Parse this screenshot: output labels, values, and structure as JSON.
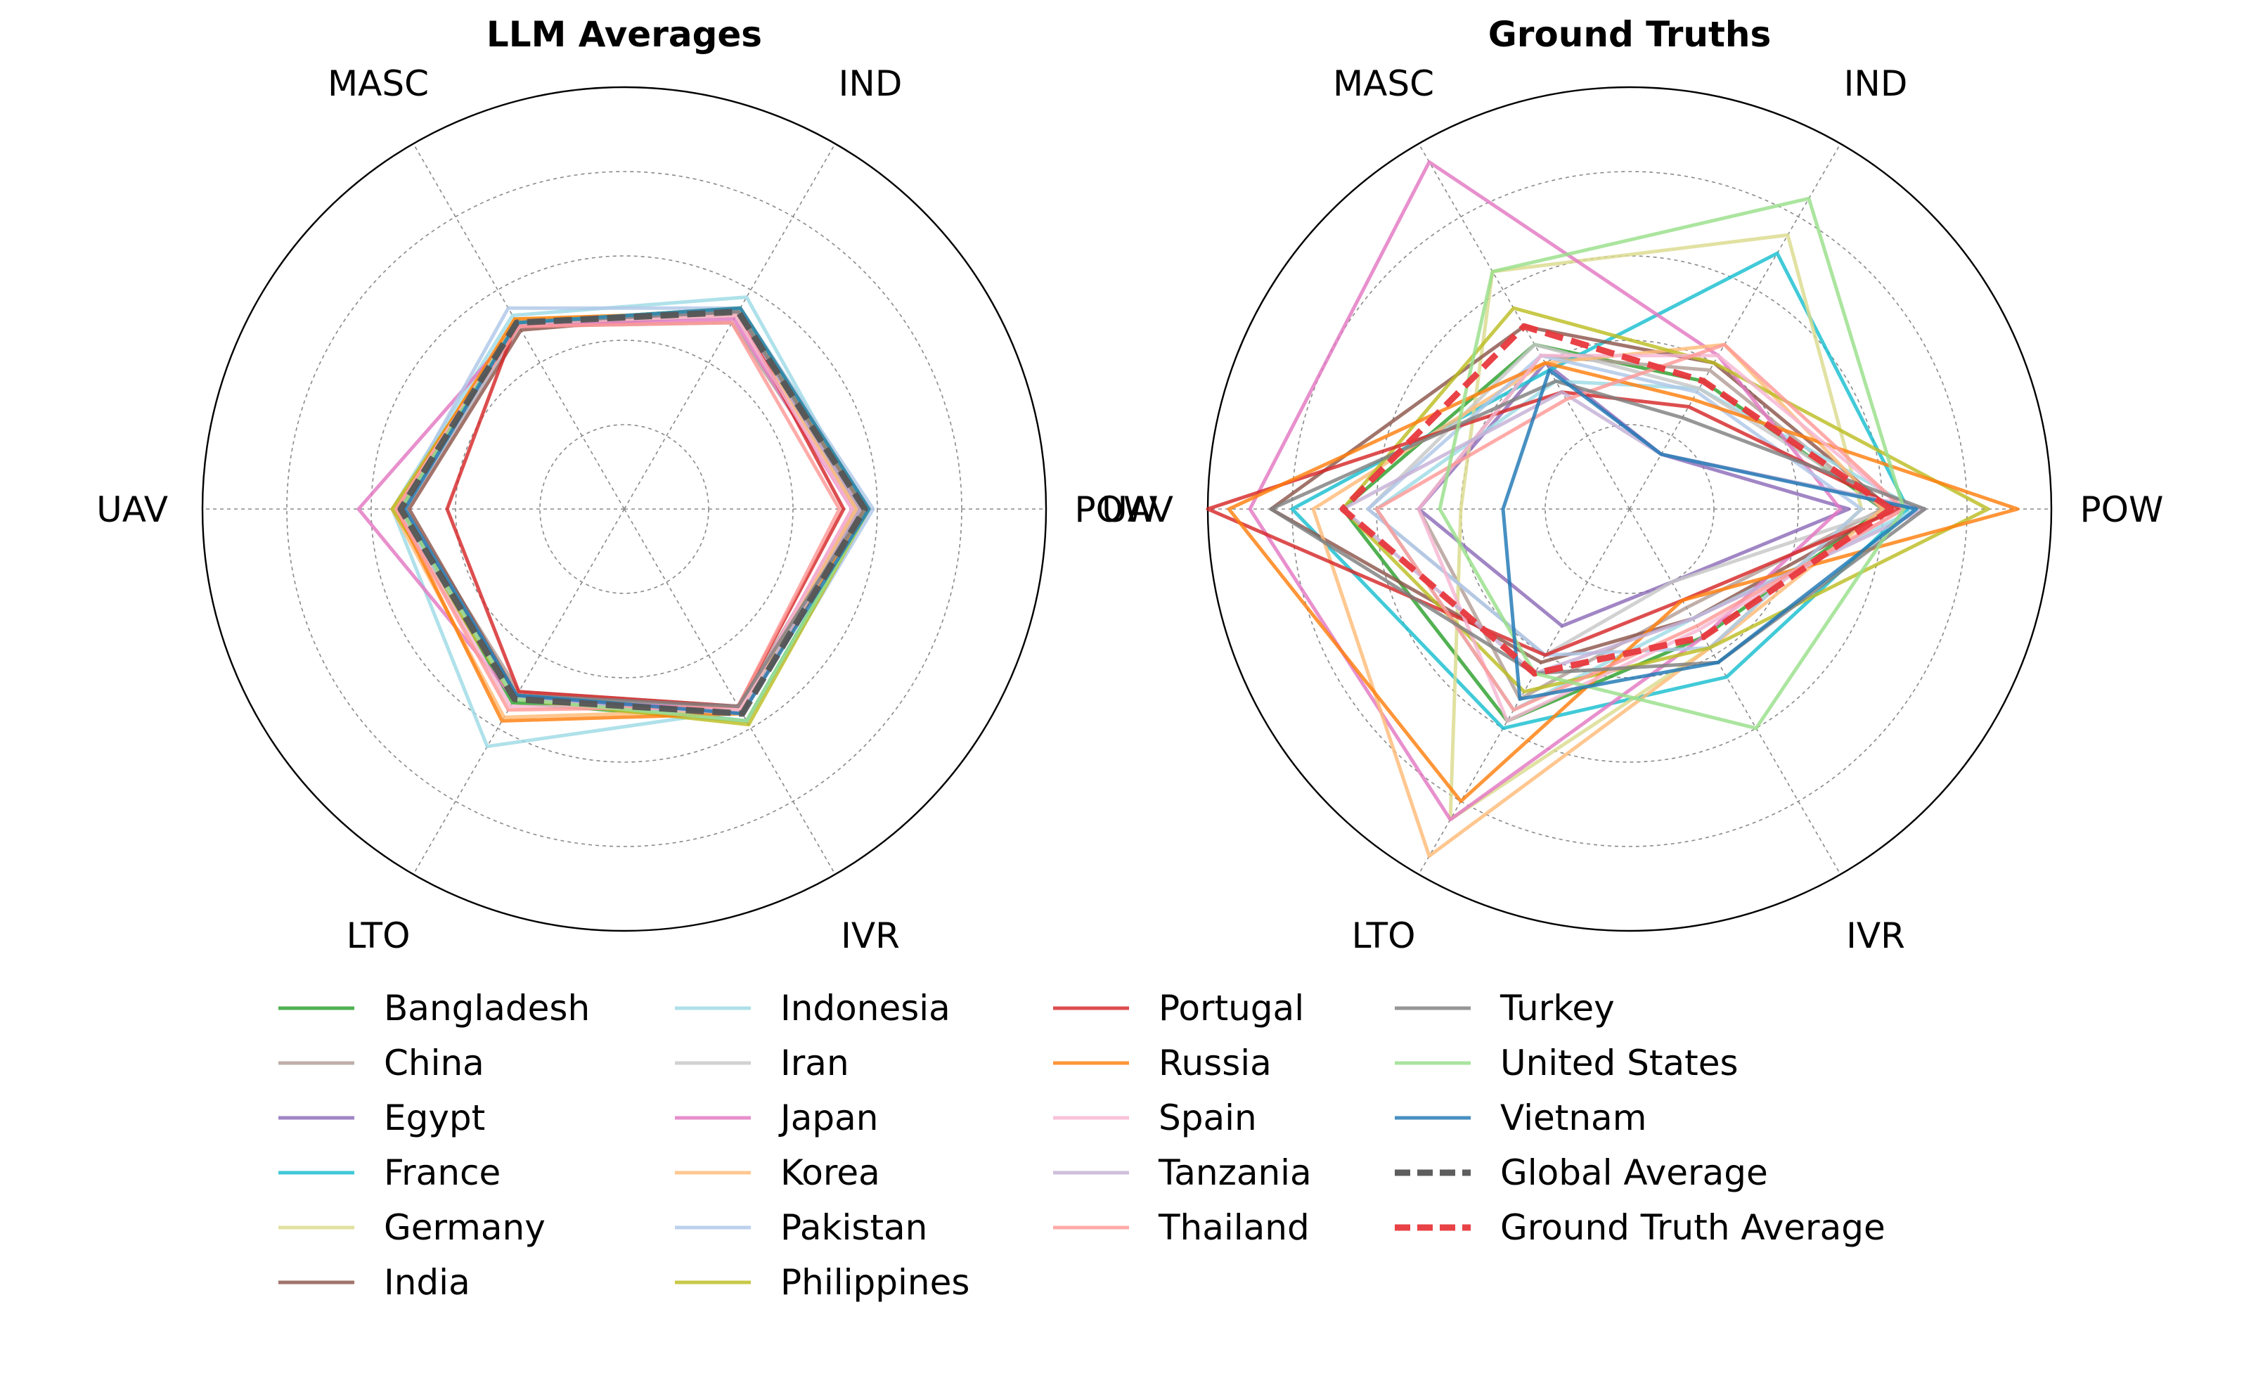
{
  "figure": {
    "axes": [
      "POW",
      "IND",
      "MASC",
      "UAV",
      "LTO",
      "IVR"
    ],
    "rmax": 100
  },
  "colors": {
    "Bangladesh": "#2ca02c",
    "China": "#b29e96",
    "Egypt": "#8c6bb8",
    "France": "#17becf",
    "Germany": "#dbdb8d",
    "India": "#8c564b",
    "Indonesia": "#9edae5",
    "Iran": "#c7c7c7",
    "Japan": "#e377c2",
    "Korea": "#ffbb78",
    "Pakistan": "#aec7e8",
    "Philippines": "#bcbd22",
    "Portugal": "#d62728",
    "Russia": "#ff7f0e",
    "Spain": "#f7b6d2",
    "Tanzania": "#c5b0d5",
    "Thailand": "#ff9896",
    "Turkey": "#7f7f7f",
    "United States": "#98df8a",
    "Vietnam": "#1f77b4",
    "Global Average": "#555555",
    "Ground Truth Average": "#e8383d"
  },
  "legend": {
    "columns": [
      [
        "Bangladesh",
        "China",
        "Egypt",
        "France",
        "Germany",
        "India"
      ],
      [
        "Indonesia",
        "Iran",
        "Japan",
        "Korea",
        "Pakistan",
        "Philippines"
      ],
      [
        "Portugal",
        "Russia",
        "Spain",
        "Tanzania",
        "Thailand"
      ],
      [
        "Turkey",
        "United States",
        "Vietnam",
        "Global Average",
        "Ground Truth Average"
      ]
    ]
  },
  "chart_data": [
    {
      "type": "radar",
      "title": "LLM Averages",
      "axes": [
        "POW",
        "IND",
        "MASC",
        "UAV",
        "LTO",
        "IVR"
      ],
      "rlim": [
        0,
        100
      ],
      "rticks": [
        20,
        40,
        60,
        80,
        100
      ],
      "series": [
        {
          "name": "Bangladesh",
          "values": [
            58,
            55,
            51,
            53,
            53,
            58
          ]
        },
        {
          "name": "China",
          "values": [
            55,
            51,
            50,
            52,
            50,
            54
          ]
        },
        {
          "name": "Egypt",
          "values": [
            55,
            53,
            50,
            52,
            51,
            55
          ]
        },
        {
          "name": "France",
          "values": [
            58,
            55,
            51,
            52,
            51,
            58
          ]
        },
        {
          "name": "Germany",
          "values": [
            57,
            54,
            52,
            52,
            51,
            56
          ]
        },
        {
          "name": "India",
          "values": [
            56,
            54,
            49,
            51,
            51,
            56
          ]
        },
        {
          "name": "Indonesia",
          "values": [
            57,
            58,
            53,
            55,
            65,
            55
          ]
        },
        {
          "name": "Iran",
          "values": [
            55,
            53,
            50,
            52,
            51,
            55
          ]
        },
        {
          "name": "Japan",
          "values": [
            54,
            52,
            50,
            63,
            52,
            55
          ]
        },
        {
          "name": "Korea",
          "values": [
            55,
            53,
            51,
            55,
            57,
            55
          ]
        },
        {
          "name": "Pakistan",
          "values": [
            59,
            55,
            55,
            54,
            52,
            58
          ]
        },
        {
          "name": "Philippines",
          "values": [
            58,
            55,
            51,
            55,
            52,
            59
          ]
        },
        {
          "name": "Portugal",
          "values": [
            52,
            54,
            51,
            42,
            50,
            54
          ]
        },
        {
          "name": "Russia",
          "values": [
            57,
            54,
            52,
            54,
            58,
            56
          ]
        },
        {
          "name": "Spain",
          "values": [
            54,
            53,
            51,
            54,
            54,
            55
          ]
        },
        {
          "name": "Tanzania",
          "values": [
            56,
            54,
            51,
            53,
            52,
            56
          ]
        },
        {
          "name": "Thailand",
          "values": [
            51,
            51,
            50,
            54,
            55,
            54
          ]
        },
        {
          "name": "Turkey",
          "values": [
            57,
            54,
            51,
            53,
            51,
            54
          ]
        },
        {
          "name": "United States",
          "values": [
            58,
            55,
            51,
            53,
            52,
            58
          ]
        },
        {
          "name": "Vietnam",
          "values": [
            58,
            55,
            51,
            52,
            51,
            56
          ]
        },
        {
          "name": "Global Average",
          "values": [
            57,
            54,
            51,
            53,
            52,
            56
          ],
          "style": "dashed"
        }
      ]
    },
    {
      "type": "radar",
      "title": "Ground Truths",
      "axes": [
        "POW",
        "IND",
        "MASC",
        "UAV",
        "LTO",
        "IVR"
      ],
      "rlim": [
        0,
        100
      ],
      "rticks": [
        20,
        40,
        60,
        80,
        100
      ],
      "series": [
        {
          "name": "Bangladesh",
          "values": [
            60,
            35,
            45,
            68,
            58,
            35
          ]
        },
        {
          "name": "China",
          "values": [
            60,
            38,
            42,
            50,
            52,
            27
          ]
        },
        {
          "name": "Egypt",
          "values": [
            52,
            15,
            40,
            50,
            32,
            20
          ]
        },
        {
          "name": "France",
          "values": [
            66,
            70,
            38,
            80,
            60,
            46
          ]
        },
        {
          "name": "Germany",
          "values": [
            55,
            75,
            65,
            40,
            85,
            38
          ]
        },
        {
          "name": "India",
          "values": [
            62,
            40,
            50,
            85,
            42,
            30
          ]
        },
        {
          "name": "Indonesia",
          "values": [
            68,
            33,
            35,
            60,
            55,
            30
          ]
        },
        {
          "name": "Iran",
          "values": [
            62,
            33,
            45,
            62,
            40,
            20
          ]
        },
        {
          "name": "Japan",
          "values": [
            50,
            42,
            95,
            90,
            85,
            35
          ]
        },
        {
          "name": "Korea",
          "values": [
            60,
            45,
            40,
            75,
            95,
            38
          ]
        },
        {
          "name": "Pakistan",
          "values": [
            55,
            32,
            42,
            62,
            40,
            38
          ]
        },
        {
          "name": "Philippines",
          "values": [
            85,
            40,
            55,
            68,
            50,
            38
          ]
        },
        {
          "name": "Portugal",
          "values": [
            64,
            28,
            32,
            100,
            40,
            25
          ]
        },
        {
          "name": "Russia",
          "values": [
            92,
            30,
            40,
            95,
            80,
            25
          ]
        },
        {
          "name": "Spain",
          "values": [
            65,
            42,
            42,
            50,
            58,
            33
          ]
        },
        {
          "name": "Tanzania",
          "values": [
            70,
            15,
            32,
            68,
            45,
            30
          ]
        },
        {
          "name": "Thailand",
          "values": [
            65,
            45,
            30,
            60,
            55,
            32
          ]
        },
        {
          "name": "Turkey",
          "values": [
            70,
            25,
            35,
            85,
            45,
            42
          ]
        },
        {
          "name": "United States",
          "values": [
            65,
            85,
            65,
            45,
            45,
            60
          ]
        },
        {
          "name": "Vietnam",
          "values": [
            68,
            15,
            38,
            30,
            52,
            42
          ]
        },
        {
          "name": "Ground Truth Average",
          "values": [
            62,
            35,
            50,
            68,
            45,
            35
          ],
          "style": "dashed"
        }
      ]
    }
  ]
}
